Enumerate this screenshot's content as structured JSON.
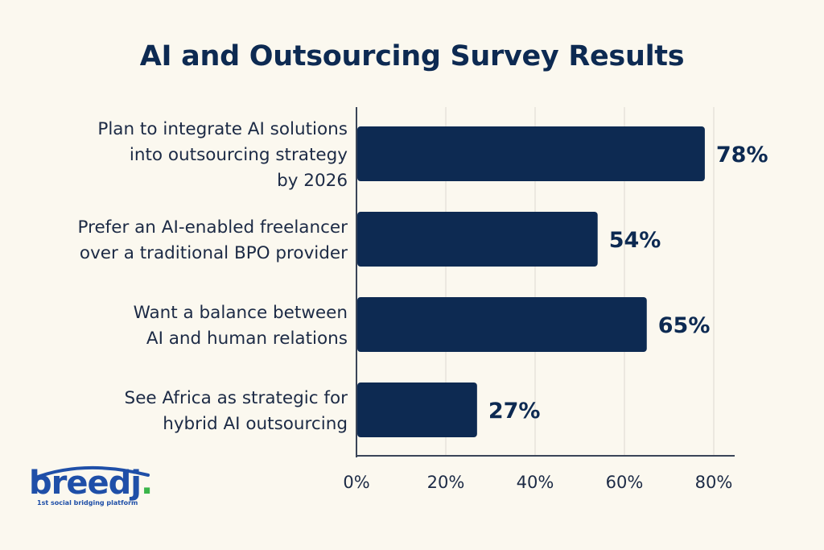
{
  "chart_data": {
    "type": "bar",
    "orientation": "horizontal",
    "title": "AI and Outsourcing Survey Results",
    "categories": [
      [
        "Plan to integrate AI solutions",
        "into outsourcing strategy",
        "by 2026"
      ],
      [
        "Prefer an AI-enabled freelancer",
        "over a traditional BPO provider"
      ],
      [
        "Want a balance between",
        "AI and human relations"
      ],
      [
        "See Africa as strategic for",
        "hybrid AI outsourcing"
      ]
    ],
    "values": [
      78,
      54,
      65,
      27
    ],
    "value_labels": [
      "78%",
      "54%",
      "65%",
      "27%"
    ],
    "xlim": [
      0,
      80
    ],
    "xticks": [
      0,
      20,
      40,
      60,
      80
    ],
    "xtick_labels": [
      "0%",
      "20%",
      "40%",
      "60%",
      "80%"
    ],
    "grid": "vertical",
    "bar_color": "#0d2a52"
  },
  "logo": {
    "wordmark": "breedj",
    "dot": ".",
    "tagline": "1st social bridging platform",
    "color": "#1f4fa8",
    "dot_color": "#3bb54a"
  }
}
